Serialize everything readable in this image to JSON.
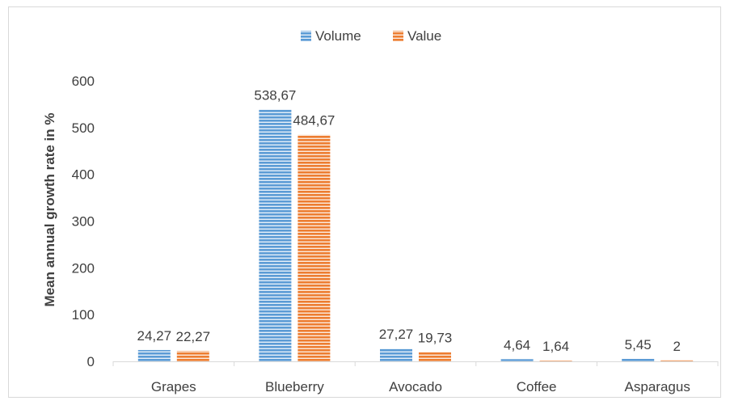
{
  "chart_data": {
    "type": "bar",
    "title": "",
    "xlabel": "",
    "ylabel": "Mean annual growth rate in %",
    "categories": [
      "Grapes",
      "Blueberry",
      "Avocado",
      "Coffee",
      "Asparagus"
    ],
    "series": [
      {
        "name": "Volume",
        "color": "#5b9bd5",
        "values": [
          24.27,
          538.67,
          27.27,
          4.64,
          5.45
        ],
        "labels": [
          "24,27",
          "538,67",
          "27,27",
          "4,64",
          "5,45"
        ]
      },
      {
        "name": "Value",
        "color": "#ed7d31",
        "values": [
          22.27,
          484.67,
          19.73,
          1.64,
          2
        ],
        "labels": [
          "22,27",
          "484,67",
          "19,73",
          "1,64",
          "2"
        ]
      }
    ],
    "ylim": [
      0,
      600
    ],
    "yticks": [
      "0",
      "100",
      "200",
      "300",
      "400",
      "500",
      "600"
    ],
    "grid": false,
    "legend": "top-center",
    "bar_pattern": "horizontal-stripes"
  }
}
